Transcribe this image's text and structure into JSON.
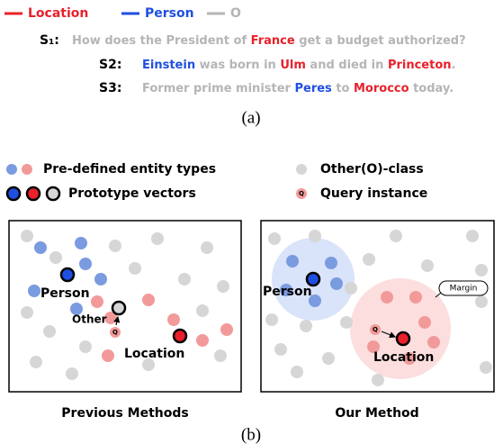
{
  "legend": [
    {
      "label": "Location",
      "color": "#e8212b"
    },
    {
      "label": "Person",
      "color": "#1f4fe0"
    },
    {
      "label": "O",
      "color": "#b5b5b5"
    }
  ],
  "sentences": [
    {
      "label": "S₁:",
      "segments": [
        {
          "text": "How does the President of ",
          "color": "#b5b5b5"
        },
        {
          "text": "France",
          "color": "#e8212b"
        },
        {
          "text": " get a budget authorized?",
          "color": "#b5b5b5"
        }
      ]
    },
    {
      "label": "S2:",
      "segments": [
        {
          "text": "Einstein",
          "color": "#1f4fe0"
        },
        {
          "text": " was born in ",
          "color": "#b5b5b5"
        },
        {
          "text": "Ulm",
          "color": "#e8212b"
        },
        {
          "text": " and died in ",
          "color": "#b5b5b5"
        },
        {
          "text": "Princeton",
          "color": "#e8212b"
        },
        {
          "text": ".",
          "color": "#b5b5b5"
        }
      ]
    },
    {
      "label": "S3:",
      "segments": [
        {
          "text": "Former prime minister ",
          "color": "#b5b5b5"
        },
        {
          "text": "Peres",
          "color": "#1f4fe0"
        },
        {
          "text": " to ",
          "color": "#b5b5b5"
        },
        {
          "text": "Morocco",
          "color": "#e8212b"
        },
        {
          "text": " today.",
          "color": "#b5b5b5"
        }
      ]
    }
  ],
  "caption_a": "(a)",
  "key": {
    "entity_types": "Pre-defined entity types",
    "other_class": "Other(O)-class",
    "prototypes": "Prototype vectors",
    "query": "Query instance",
    "query_mark": "Q"
  },
  "panels": [
    {
      "person": "Person",
      "other": "Other",
      "location": "Location",
      "query_mark": "Q",
      "caption": "Previous Methods"
    },
    {
      "person": "Person",
      "location": "Location",
      "query_mark": "Q",
      "margin": "Margin",
      "caption": "Our Method"
    }
  ],
  "caption_b": "(b)"
}
